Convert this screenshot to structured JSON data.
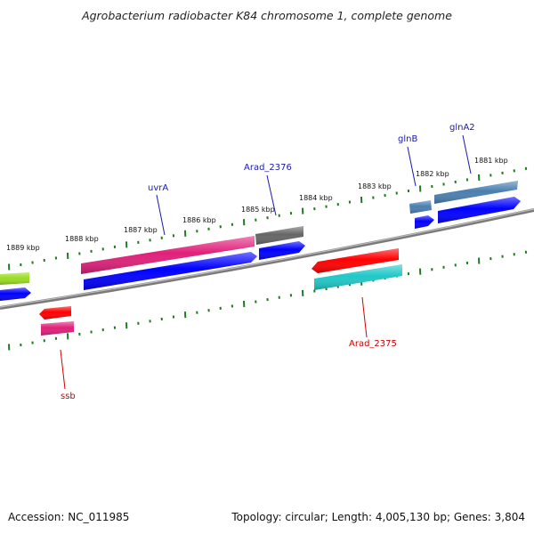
{
  "title": "Agrobacterium radiobacter K84 chromosome 1, complete genome",
  "footer": {
    "accession": "Accession: NC_011985",
    "summary": "Topology: circular; Length: 4,005,130 bp; Genes: 3,804"
  },
  "colors": {
    "backbone": "#7a7a7a",
    "tick": "#1f7a1f",
    "cds": "#0000ff",
    "label_blue": "#1a1ab0",
    "label_red": "#cc0000"
  },
  "scale_labels": [
    {
      "text": "1881 kbp"
    },
    {
      "text": "1882 kbp"
    },
    {
      "text": "1883 kbp"
    },
    {
      "text": "1884 kbp"
    },
    {
      "text": "1885 kbp"
    },
    {
      "text": "1886 kbp"
    },
    {
      "text": "1887 kbp"
    },
    {
      "text": "1888 kbp"
    },
    {
      "text": "1889 kbp"
    }
  ],
  "gene_labels": [
    {
      "text": "glnA2",
      "strand": "forward"
    },
    {
      "text": "glnB",
      "strand": "forward"
    },
    {
      "text": "Arad_2376",
      "strand": "forward"
    },
    {
      "text": "uvrA",
      "strand": "forward"
    },
    {
      "text": "Arad_2375",
      "strand": "reverse"
    },
    {
      "text": "ssb",
      "strand": "reverse"
    }
  ],
  "features": [
    {
      "name": "feature-right-edge-gray",
      "color": "#666666"
    },
    {
      "name": "glnA2-gene",
      "color": "#4a7fb0"
    },
    {
      "name": "glnA2-cds",
      "color": "#0000ff"
    },
    {
      "name": "glnB-gene",
      "color": "#4a7fb0"
    },
    {
      "name": "glnB-cds",
      "color": "#0000ff"
    },
    {
      "name": "Arad_2376-gene",
      "color": "#666666"
    },
    {
      "name": "Arad_2376-cds",
      "color": "#0000ff"
    },
    {
      "name": "uvrA-gene",
      "color": "#e0207a"
    },
    {
      "name": "uvrA-cds",
      "color": "#0000ff"
    },
    {
      "name": "left-edge-gene",
      "color": "#99dd22"
    },
    {
      "name": "left-edge-cds",
      "color": "#0000ff"
    },
    {
      "name": "Arad_2375-cds",
      "color": "#ff0000"
    },
    {
      "name": "Arad_2375-gene",
      "color": "#20c8c8"
    },
    {
      "name": "ssb-cds",
      "color": "#ff0000"
    },
    {
      "name": "ssb-gene",
      "color": "#e0207a"
    }
  ]
}
